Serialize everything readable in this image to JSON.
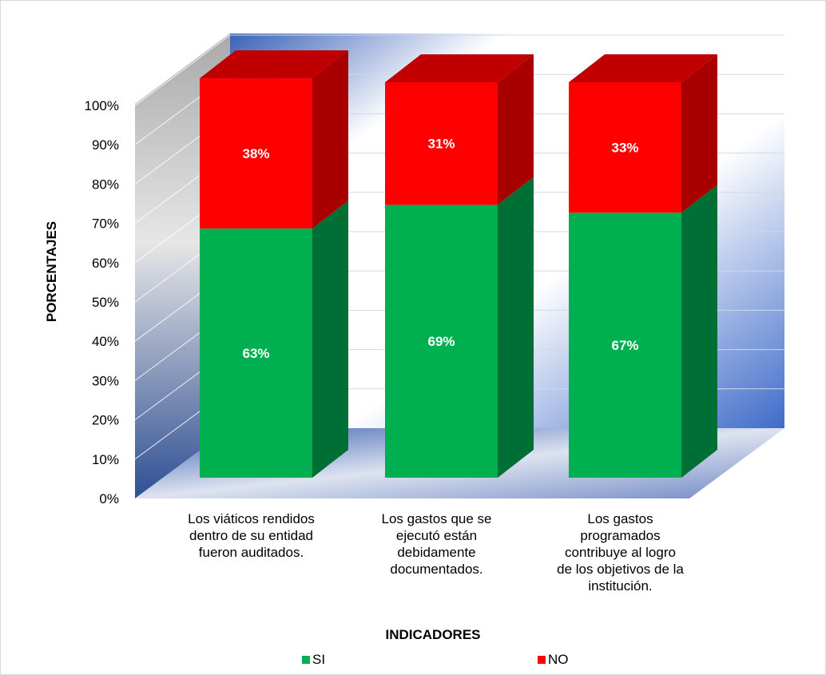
{
  "chart_data": {
    "type": "bar",
    "stacked": true,
    "three_d": true,
    "title": "",
    "xlabel": "INDICADORES",
    "ylabel": "PORCENTAJES",
    "ylim": [
      0,
      100
    ],
    "y_ticks": [
      "0%",
      "10%",
      "20%",
      "30%",
      "40%",
      "50%",
      "60%",
      "70%",
      "80%",
      "90%",
      "100%"
    ],
    "categories": [
      [
        "Los viáticos rendidos",
        "dentro de su entidad",
        "fueron auditados."
      ],
      [
        "Los gastos que se",
        "ejecutó están",
        "debidamente",
        "documentados."
      ],
      [
        "Los gastos",
        "programados",
        "contribuye al logro",
        "de los objetivos de la",
        "institución."
      ]
    ],
    "series": [
      {
        "name": "SI",
        "values": [
          63,
          69,
          67
        ],
        "labels": [
          "63%",
          "69%",
          "67%"
        ],
        "color": "#00b050",
        "side_color": "#006f35",
        "top_color": "#00d060"
      },
      {
        "name": "NO",
        "values": [
          38,
          31,
          33
        ],
        "labels": [
          "38%",
          "31%",
          "33%"
        ],
        "color": "#ff0000",
        "side_color": "#a80000",
        "top_color": "#c00000"
      }
    ],
    "legend_position": "bottom",
    "grid": true
  }
}
